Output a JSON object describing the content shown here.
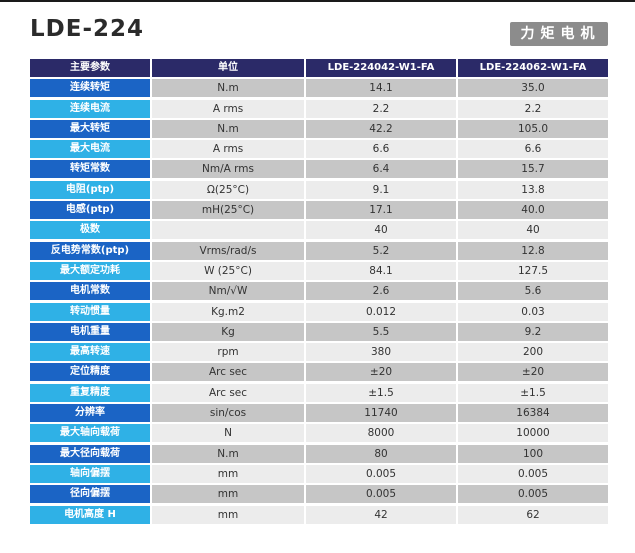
{
  "header": {
    "title": "LDE-224",
    "badge": "力矩电机"
  },
  "table": {
    "columns": [
      "主要参数",
      "单位",
      "LDE-224042-W1-FA",
      "LDE-224062-W1-FA"
    ],
    "rows": [
      {
        "param": "连续转矩",
        "unit": "N.m",
        "v1": "14.1",
        "v2": "35.0"
      },
      {
        "param": "连续电流",
        "unit": "A rms",
        "v1": "2.2",
        "v2": "2.2"
      },
      {
        "param": "最大转矩",
        "unit": "N.m",
        "v1": "42.2",
        "v2": "105.0"
      },
      {
        "param": "最大电流",
        "unit": "A rms",
        "v1": "6.6",
        "v2": "6.6"
      },
      {
        "param": "转矩常数",
        "unit": "Nm/A rms",
        "v1": "6.4",
        "v2": "15.7"
      },
      {
        "param": "电阻(ptp)",
        "unit": "Ω(25°C)",
        "v1": "9.1",
        "v2": "13.8"
      },
      {
        "param": "电感(ptp)",
        "unit": "mH(25°C)",
        "v1": "17.1",
        "v2": "40.0"
      },
      {
        "param": "极数",
        "unit": "",
        "v1": "40",
        "v2": "40"
      },
      {
        "param": "反电势常数(ptp)",
        "unit": "Vrms/rad/s",
        "v1": "5.2",
        "v2": "12.8"
      },
      {
        "param": "最大额定功耗",
        "unit": "W (25°C)",
        "v1": "84.1",
        "v2": "127.5"
      },
      {
        "param": "电机常数",
        "unit": "Nm/√W",
        "v1": "2.6",
        "v2": "5.6"
      },
      {
        "param": "转动惯量",
        "unit": "Kg.m2",
        "v1": "0.012",
        "v2": "0.03"
      },
      {
        "param": "电机重量",
        "unit": "Kg",
        "v1": "5.5",
        "v2": "9.2"
      },
      {
        "param": "最高转速",
        "unit": "rpm",
        "v1": "380",
        "v2": "200"
      },
      {
        "param": "定位精度",
        "unit": "Arc sec",
        "v1": "±20",
        "v2": "±20"
      },
      {
        "param": "重复精度",
        "unit": "Arc sec",
        "v1": "±1.5",
        "v2": "±1.5"
      },
      {
        "param": "分辨率",
        "unit": "sin/cos",
        "v1": "11740",
        "v2": "16384"
      },
      {
        "param": "最大轴向载荷",
        "unit": "N",
        "v1": "8000",
        "v2": "10000"
      },
      {
        "param": "最大径向载荷",
        "unit": "N.m",
        "v1": "80",
        "v2": "100"
      },
      {
        "param": "轴向偏摆",
        "unit": "mm",
        "v1": "0.005",
        "v2": "0.005"
      },
      {
        "param": "径向偏摆",
        "unit": "mm",
        "v1": "0.005",
        "v2": "0.005"
      },
      {
        "param": "电机高度 H",
        "unit": "mm",
        "v1": "42",
        "v2": "62"
      }
    ]
  },
  "colors": {
    "header_bg": "#2b2a68",
    "label_dark": "#1b64c5",
    "label_light": "#2fb1e6",
    "value_dark": "#c6c6c6",
    "value_light": "#ececec",
    "badge_bg": "#8c8c8c"
  }
}
